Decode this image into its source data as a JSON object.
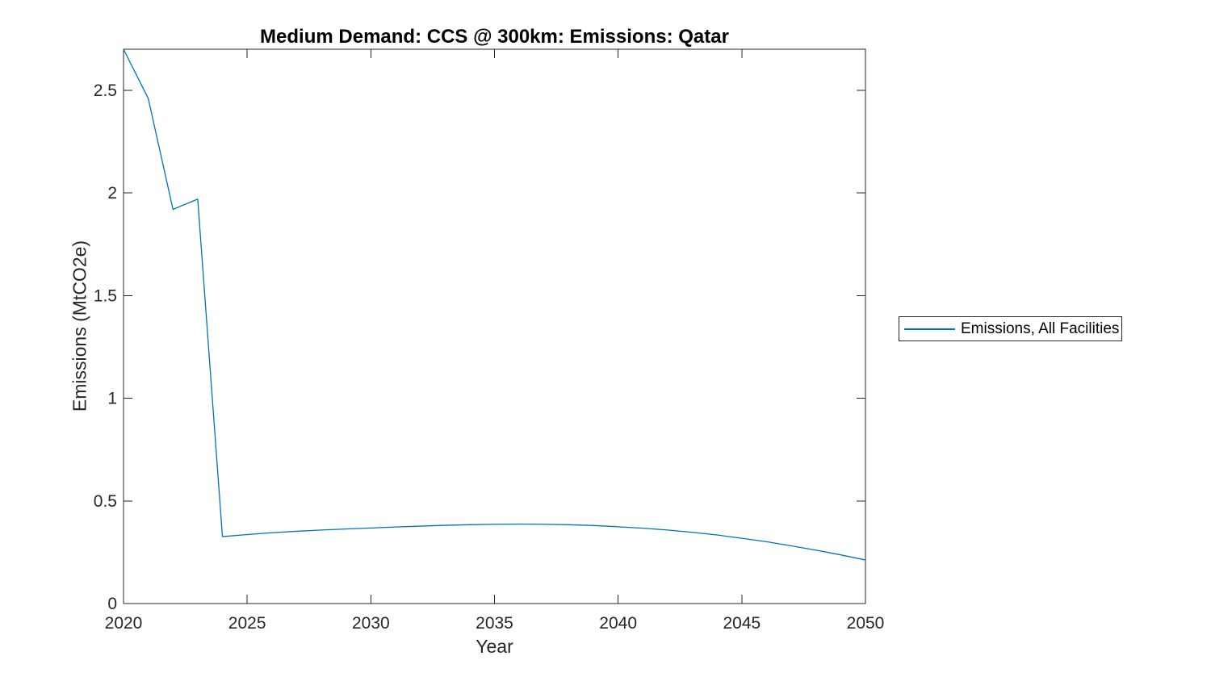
{
  "figure": {
    "background": "#ffffff"
  },
  "legend": {
    "label": "Emissions, All Facilities",
    "line_color": "#0072BD",
    "border_color": "#262626",
    "position": "right-outside"
  },
  "chart_data": {
    "type": "line",
    "title": "Medium Demand: CCS @ 300km: Emissions: Qatar",
    "xlabel": "Year",
    "ylabel": "Emissions (MtCO2e)",
    "xlim": [
      2020,
      2050
    ],
    "ylim": [
      0,
      2.7
    ],
    "xticks": [
      2020,
      2025,
      2030,
      2035,
      2040,
      2045,
      2050
    ],
    "xtick_labels": [
      "2020",
      "2025",
      "2030",
      "2035",
      "2040",
      "2045",
      "2050"
    ],
    "yticks": [
      0,
      0.5,
      1,
      1.5,
      2,
      2.5
    ],
    "ytick_labels": [
      "0",
      "0.5",
      "1",
      "1.5",
      "2",
      "2.5"
    ],
    "grid": false,
    "box": true,
    "line_color": "#0072BD",
    "axis_color": "#262626",
    "title_color": "#000000",
    "x": [
      2020,
      2021,
      2022,
      2023,
      2024,
      2025,
      2026,
      2027,
      2028,
      2029,
      2030,
      2031,
      2032,
      2033,
      2034,
      2035,
      2036,
      2037,
      2038,
      2039,
      2040,
      2041,
      2042,
      2043,
      2044,
      2045,
      2046,
      2047,
      2048,
      2049,
      2050
    ],
    "series": [
      {
        "name": "Emissions, All Facilities",
        "values": [
          2.7,
          2.46,
          1.92,
          1.97,
          0.326,
          0.336,
          0.345,
          0.352,
          0.358,
          0.363,
          0.368,
          0.373,
          0.377,
          0.381,
          0.384,
          0.386,
          0.387,
          0.386,
          0.384,
          0.38,
          0.374,
          0.367,
          0.358,
          0.347,
          0.334,
          0.318,
          0.301,
          0.281,
          0.26,
          0.237,
          0.212
        ]
      }
    ]
  }
}
